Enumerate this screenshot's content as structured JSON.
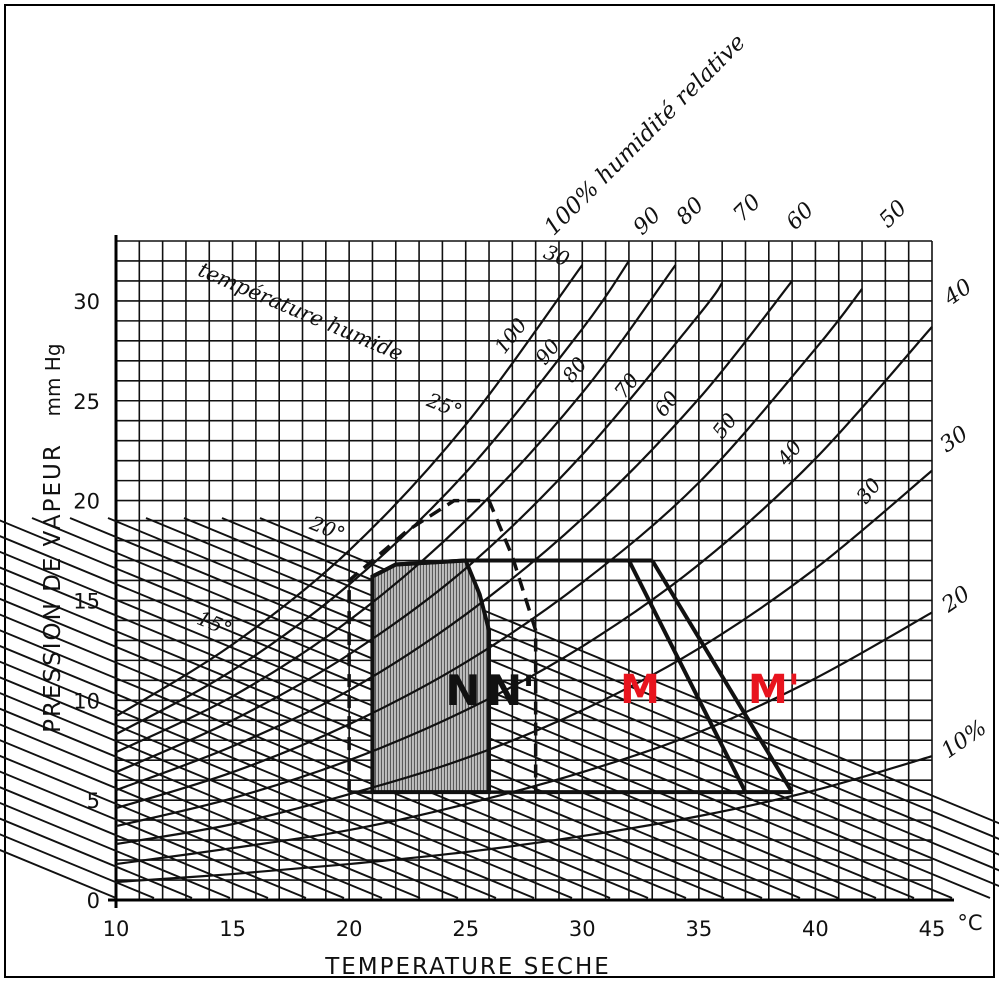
{
  "chart_data": {
    "type": "line",
    "title": "",
    "xlabel": "TEMPERATURE SECHE",
    "ylabel": "PRESSION DE VAPEUR",
    "ylabel_unit": "mm Hg",
    "x_unit_label": "°C",
    "xlim": [
      10,
      45
    ],
    "ylim": [
      0,
      33
    ],
    "grid": true,
    "x_ticks": [
      10,
      15,
      20,
      25,
      30,
      35,
      40,
      45
    ],
    "y_ticks": [
      0,
      5,
      10,
      15,
      20,
      25,
      30
    ],
    "rh_title": "100% humidité relative",
    "rh_top_labels": [
      "100%",
      "90",
      "80",
      "70",
      "60",
      "50"
    ],
    "rh_right_labels": [
      "40",
      "30",
      "20",
      "10%"
    ],
    "rh_inner_labels": [
      "100",
      "90",
      "80",
      "70",
      "60",
      "50",
      "40",
      "30"
    ],
    "wet_bulb_title": "température humide",
    "wet_bulb_labels": [
      "15°",
      "20°",
      "25°",
      "30"
    ],
    "relative_humidity_curves": [
      {
        "rh": 100,
        "points": [
          [
            10,
            9.2
          ],
          [
            15,
            12.8
          ],
          [
            20,
            17.5
          ],
          [
            25,
            23.8
          ],
          [
            30,
            31.8
          ]
        ]
      },
      {
        "rh": 90,
        "points": [
          [
            10,
            8.3
          ],
          [
            15,
            11.5
          ],
          [
            20,
            15.8
          ],
          [
            25,
            21.4
          ],
          [
            30,
            28.6
          ],
          [
            32,
            32.0
          ]
        ]
      },
      {
        "rh": 80,
        "points": [
          [
            10,
            7.4
          ],
          [
            15,
            10.2
          ],
          [
            20,
            14.0
          ],
          [
            25,
            19.0
          ],
          [
            30,
            25.4
          ],
          [
            34,
            31.8
          ]
        ]
      },
      {
        "rh": 70,
        "points": [
          [
            10,
            6.4
          ],
          [
            15,
            9.0
          ],
          [
            20,
            12.3
          ],
          [
            25,
            16.6
          ],
          [
            30,
            22.3
          ],
          [
            35,
            29.3
          ],
          [
            36,
            30.9
          ]
        ]
      },
      {
        "rh": 60,
        "points": [
          [
            10,
            5.5
          ],
          [
            15,
            7.7
          ],
          [
            20,
            10.5
          ],
          [
            25,
            14.3
          ],
          [
            30,
            19.1
          ],
          [
            35,
            25.1
          ],
          [
            39,
            31.0
          ]
        ]
      },
      {
        "rh": 50,
        "points": [
          [
            10,
            4.6
          ],
          [
            15,
            6.4
          ],
          [
            20,
            8.8
          ],
          [
            25,
            11.9
          ],
          [
            30,
            15.9
          ],
          [
            35,
            20.9
          ],
          [
            40,
            27.6
          ],
          [
            42,
            30.6
          ]
        ]
      },
      {
        "rh": 40,
        "points": [
          [
            10,
            3.7
          ],
          [
            15,
            5.1
          ],
          [
            20,
            7.0
          ],
          [
            25,
            9.5
          ],
          [
            30,
            12.7
          ],
          [
            35,
            16.8
          ],
          [
            40,
            22.1
          ],
          [
            45,
            28.7
          ]
        ]
      },
      {
        "rh": 30,
        "points": [
          [
            10,
            2.8
          ],
          [
            15,
            3.8
          ],
          [
            20,
            5.3
          ],
          [
            25,
            7.1
          ],
          [
            30,
            9.5
          ],
          [
            35,
            12.6
          ],
          [
            40,
            16.6
          ],
          [
            45,
            21.5
          ]
        ]
      },
      {
        "rh": 20,
        "points": [
          [
            10,
            1.8
          ],
          [
            15,
            2.6
          ],
          [
            20,
            3.5
          ],
          [
            25,
            4.8
          ],
          [
            30,
            6.4
          ],
          [
            35,
            8.4
          ],
          [
            40,
            11.1
          ],
          [
            45,
            14.4
          ]
        ]
      },
      {
        "rh": 10,
        "points": [
          [
            10,
            0.9
          ],
          [
            15,
            1.3
          ],
          [
            20,
            1.8
          ],
          [
            25,
            2.4
          ],
          [
            30,
            3.2
          ],
          [
            35,
            4.2
          ],
          [
            40,
            5.5
          ],
          [
            45,
            7.2
          ]
        ]
      }
    ],
    "zones": [
      {
        "name": "N",
        "style": "shaded",
        "points": [
          [
            21,
            5.4
          ],
          [
            21,
            16.2
          ],
          [
            22,
            16.8
          ],
          [
            25,
            17.0
          ],
          [
            25.6,
            15.3
          ],
          [
            26,
            13.5
          ],
          [
            26,
            5.4
          ]
        ]
      },
      {
        "name": "N'",
        "style": "dashed",
        "points": [
          [
            20,
            5.4
          ],
          [
            20,
            16.0
          ],
          [
            22.5,
            18.5
          ],
          [
            24.5,
            20.0
          ],
          [
            26,
            20.0
          ],
          [
            27,
            17.2
          ],
          [
            28,
            13.5
          ],
          [
            28,
            5.4
          ]
        ]
      },
      {
        "name": "M",
        "style": "solid",
        "points": [
          [
            21,
            5.4
          ],
          [
            21,
            16.2
          ],
          [
            22,
            16.8
          ],
          [
            25,
            17.0
          ],
          [
            32,
            17.0
          ],
          [
            37,
            5.4
          ]
        ]
      },
      {
        "name": "M'",
        "style": "solid",
        "points": [
          [
            33,
            17.0
          ],
          [
            39,
            5.4
          ]
        ]
      }
    ],
    "zone_labels": [
      "N",
      "N'",
      "M",
      "M'"
    ],
    "zone_label_color": "#e8141e"
  }
}
